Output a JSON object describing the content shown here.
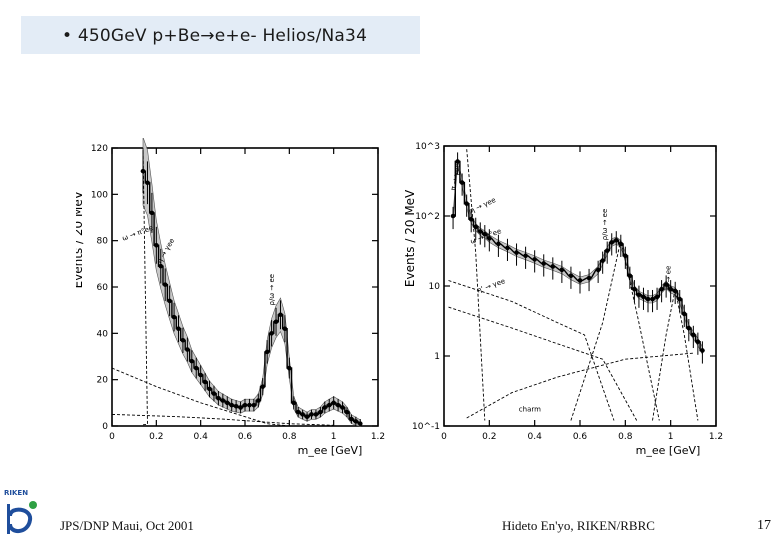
{
  "slide": {
    "title": "• 450GeV p+Be→e+e-   Helios/Na34",
    "footer_left": "JPS/DNP Maui, Oct 2001",
    "footer_center": "Hideto En'yo, RIKEN/RBRC",
    "page_number": "17",
    "logo_text": "RIKEN",
    "colors": {
      "title_bg": "#e3ecf6",
      "logo_blue": "#1f4e9c",
      "logo_green": "#2ea043"
    }
  },
  "chart_data": [
    {
      "type": "line",
      "yscale": "linear",
      "ylabel": "Events / 20 MeV",
      "xlabel": "m_ee [GeV]",
      "xlim": [
        0,
        1.2
      ],
      "ylim": [
        0,
        120
      ],
      "x_ticks": [
        "0",
        "0.2",
        "0.4",
        "0.6",
        "0.8",
        "1",
        "1.2"
      ],
      "y_ticks": [
        "0",
        "20",
        "40",
        "60",
        "80",
        "100",
        "120"
      ],
      "annotations": [
        "η → γee",
        "ω → π°ee",
        "ρ/ω → ee"
      ],
      "series": [
        {
          "x": [
            0.14,
            0.16,
            0.18,
            0.2,
            0.22,
            0.24,
            0.26,
            0.28,
            0.3,
            0.32,
            0.34,
            0.36,
            0.38,
            0.4,
            0.42,
            0.44,
            0.46,
            0.48,
            0.5,
            0.52,
            0.54,
            0.56,
            0.58,
            0.6,
            0.62,
            0.64,
            0.66,
            0.68,
            0.7,
            0.72,
            0.74,
            0.76,
            0.78,
            0.8,
            0.82,
            0.84,
            0.86,
            0.88,
            0.9,
            0.92,
            0.94,
            0.96,
            0.98,
            1.0,
            1.02,
            1.04,
            1.06,
            1.08,
            1.1,
            1.12
          ],
          "y": [
            110,
            105,
            92,
            78,
            69,
            61,
            54,
            47,
            42,
            37,
            33,
            28,
            25,
            22,
            19,
            16,
            14,
            12,
            11,
            10,
            9,
            8.5,
            8,
            9,
            9,
            9,
            11,
            17,
            32,
            40,
            45,
            48,
            42,
            25,
            10,
            6,
            5,
            4,
            5,
            5,
            6,
            8,
            9,
            10,
            9,
            8,
            6,
            3,
            2,
            1
          ]
        }
      ]
    },
    {
      "type": "line",
      "yscale": "log",
      "ylabel": "Events / 20 MeV",
      "xlabel": "m_ee [GeV]",
      "xlim": [
        0,
        1.2
      ],
      "ylim": [
        0.1,
        1000
      ],
      "x_ticks": [
        "0",
        "0.2",
        "0.4",
        "0.6",
        "0.8",
        "1",
        "1.2"
      ],
      "y_ticks": [
        "10^-1",
        "1",
        "10",
        "10^2",
        "10^3"
      ],
      "annotations": [
        "π → γee",
        "η → γee",
        "ω → π°ee",
        "η' → γee",
        "charm",
        "ρ/ω → ee",
        "φ → ee"
      ],
      "series": [
        {
          "x": [
            0.04,
            0.06,
            0.08,
            0.1,
            0.12,
            0.14,
            0.16,
            0.18,
            0.2,
            0.24,
            0.28,
            0.32,
            0.36,
            0.4,
            0.44,
            0.48,
            0.52,
            0.56,
            0.6,
            0.64,
            0.68,
            0.7,
            0.72,
            0.74,
            0.76,
            0.78,
            0.8,
            0.82,
            0.84,
            0.86,
            0.88,
            0.9,
            0.92,
            0.94,
            0.96,
            0.98,
            1.0,
            1.02,
            1.04,
            1.06,
            1.08,
            1.1,
            1.12,
            1.14
          ],
          "y": [
            100,
            600,
            300,
            150,
            90,
            70,
            60,
            55,
            48,
            40,
            35,
            30,
            27,
            24,
            21,
            19,
            17,
            14,
            12,
            13,
            17,
            23,
            32,
            42,
            45,
            40,
            27,
            14,
            9,
            7.5,
            7,
            6.5,
            6.5,
            7,
            9,
            10.5,
            9,
            8.5,
            6.5,
            4,
            2.5,
            2,
            1.6,
            1.2
          ]
        }
      ]
    }
  ]
}
